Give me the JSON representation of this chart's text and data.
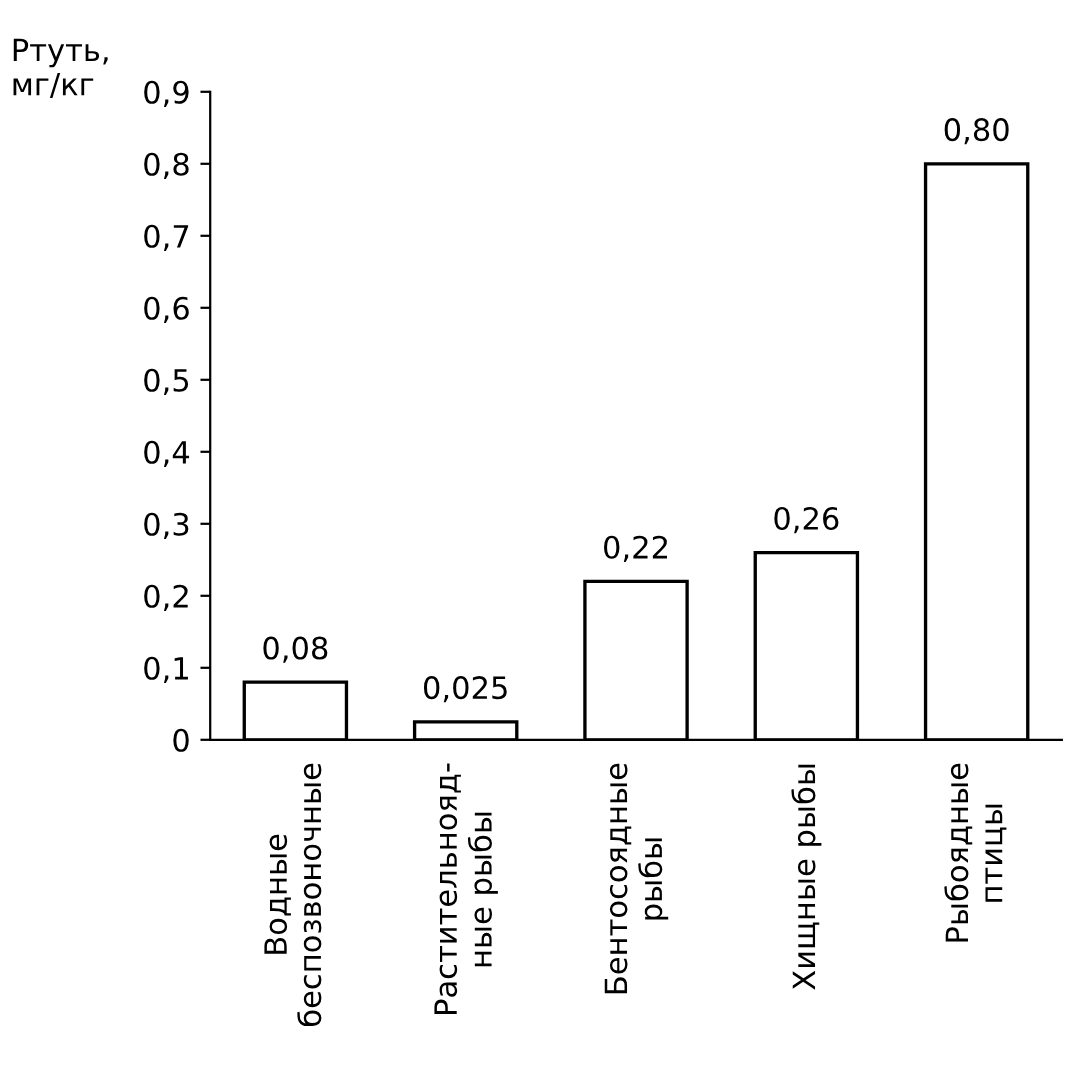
{
  "chart_data": {
    "type": "bar",
    "ylabel": "Ртуть,\nмг/кг",
    "categories": [
      "Водные\nбеспозвоночные",
      "Растительнояд-\nные рыбы",
      "Бентосоядные\nрыбы",
      "Хищные рыбы",
      "Рыбоядные\nптицы"
    ],
    "values": [
      0.08,
      0.025,
      0.22,
      0.26,
      0.8
    ],
    "value_labels": [
      "0,08",
      "0,025",
      "0,22",
      "0,26",
      "0,80"
    ],
    "color": "#ffffff",
    "ylim": [
      0,
      0.9
    ],
    "yticks": [
      0,
      {
        "value": 0.1,
        "label": "0,1"
      },
      {
        "value": 0.2,
        "label": "0,2"
      },
      {
        "value": 0.3,
        "label": "0,3"
      },
      {
        "value": 0.4,
        "label": "0,4"
      },
      {
        "value": 0.5,
        "label": "0,5"
      },
      {
        "value": 0.6,
        "label": "0,6"
      },
      {
        "value": 0.7,
        "label": "0,7"
      },
      {
        "value": 0.8,
        "label": "0,8"
      },
      {
        "value": 0.9,
        "label": "0,9"
      }
    ],
    "grid": false,
    "legend": false
  }
}
